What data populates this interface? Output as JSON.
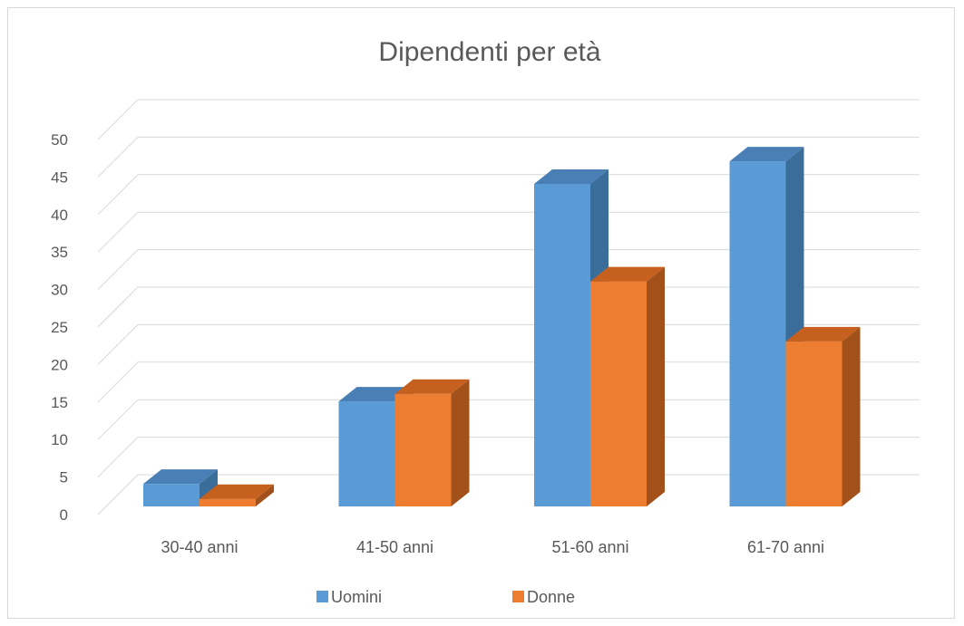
{
  "chart_data": {
    "type": "bar",
    "title": "Dipendenti per età",
    "categories": [
      "30-40 anni",
      "41-50 anni",
      "51-60 anni",
      "61-70 anni"
    ],
    "series": [
      {
        "name": "Uomini",
        "values": [
          3,
          14,
          43,
          46
        ],
        "color": "#5b9bd5",
        "side_color": "#3a6d99",
        "top_color": "#4a7fb5"
      },
      {
        "name": "Donne",
        "values": [
          1,
          15,
          30,
          22
        ],
        "color": "#ed7d31",
        "side_color": "#a2511b",
        "top_color": "#c5601f"
      }
    ],
    "yticks": [
      "0",
      "5",
      "10",
      "15",
      "20",
      "25",
      "30",
      "35",
      "40",
      "45",
      "50"
    ],
    "ylim": [
      0,
      50
    ],
    "grid": true,
    "legend": "bottom",
    "style": "3d-clustered-column"
  }
}
